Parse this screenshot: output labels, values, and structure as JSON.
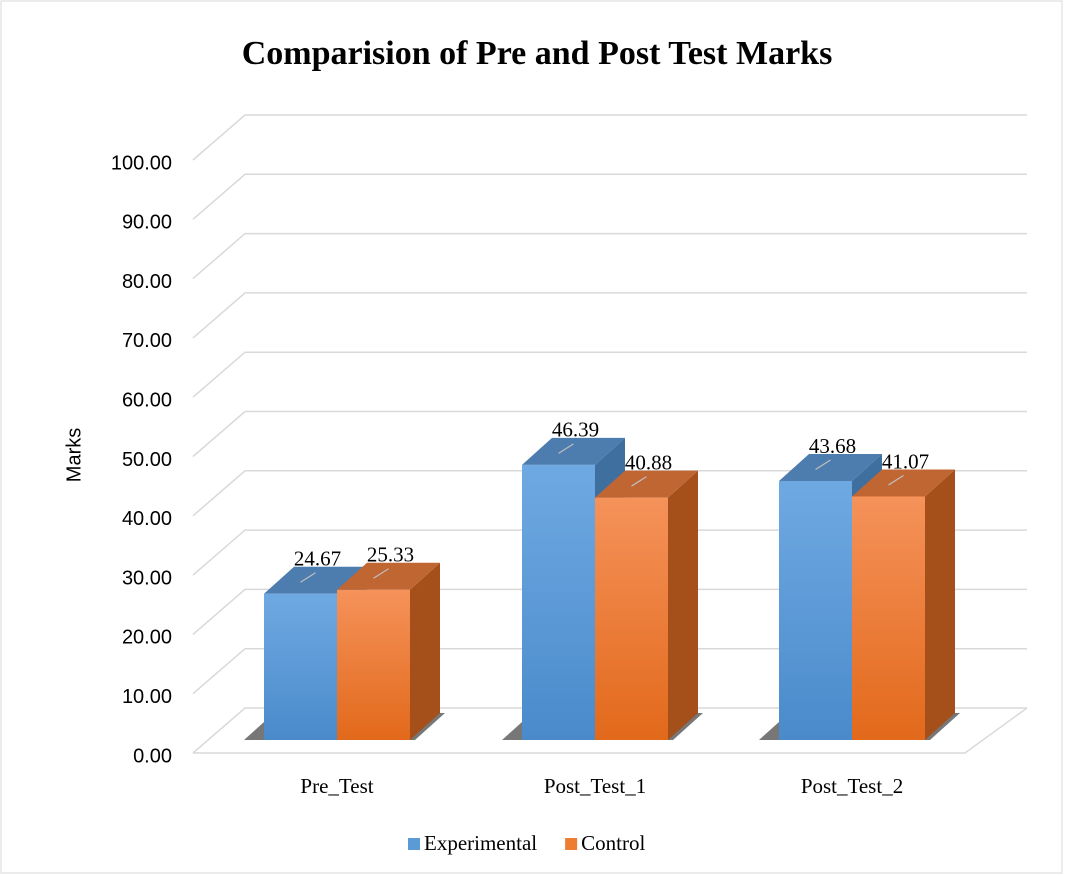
{
  "chart_data": {
    "type": "bar3d",
    "title": "Comparision of Pre and Post Test Marks",
    "y_label": "Marks",
    "categories": [
      "Pre_Test",
      "Post_Test_1",
      "Post_Test_2"
    ],
    "series": [
      {
        "name": "Experimental",
        "color": "#5b9bd5",
        "values": [
          24.67,
          46.39,
          43.68
        ]
      },
      {
        "name": "Control",
        "color": "#ed7d31",
        "values": [
          25.33,
          40.88,
          41.07
        ]
      }
    ],
    "ylim": [
      0,
      100
    ],
    "yticks": [
      {
        "value": 0,
        "label": "0.00"
      },
      {
        "value": 10,
        "label": "10.00"
      },
      {
        "value": 20,
        "label": "20.00"
      },
      {
        "value": 30,
        "label": "30.00"
      },
      {
        "value": 40,
        "label": "40.00"
      },
      {
        "value": 50,
        "label": "50.00"
      },
      {
        "value": 60,
        "label": "60.00"
      },
      {
        "value": 70,
        "label": "70.00"
      },
      {
        "value": 80,
        "label": "80.00"
      },
      {
        "value": 90,
        "label": "90.00"
      },
      {
        "value": 100,
        "label": "100.00"
      }
    ],
    "grid": true,
    "legend": "bottom"
  }
}
